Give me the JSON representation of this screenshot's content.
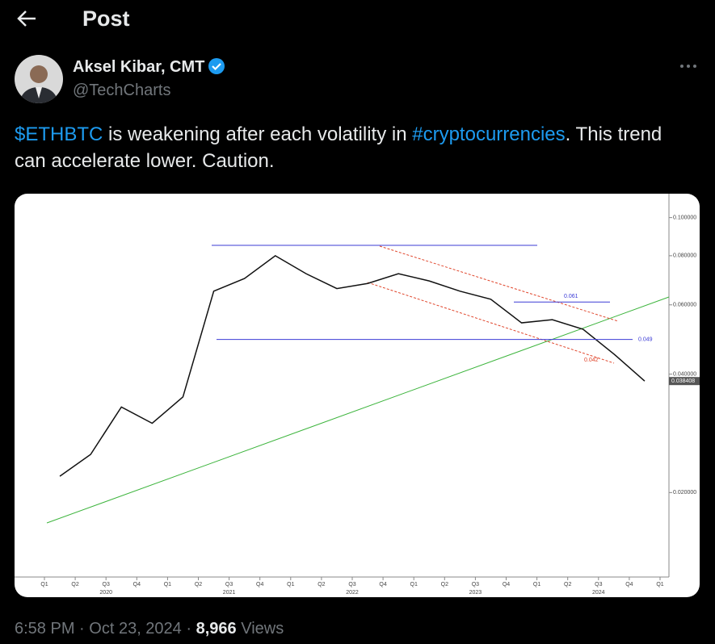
{
  "header": {
    "title": "Post"
  },
  "author": {
    "name": "Aksel Kibar, CMT",
    "handle": "@TechCharts"
  },
  "post": {
    "text": [
      "$ETHBTC",
      " is weakening after each volatility in ",
      "#cryptocurrencies",
      ". This trend can accelerate lower. Caution."
    ]
  },
  "chart_data": {
    "type": "line",
    "log_scale": true,
    "color": "#111111",
    "categories": [
      "Q1",
      "Q2",
      "Q3",
      "Q4",
      "Q1",
      "Q2",
      "Q3",
      "Q4",
      "Q1",
      "Q2",
      "Q3",
      "Q4",
      "Q1",
      "Q2",
      "Q3",
      "Q4",
      "Q1",
      "Q2",
      "Q3",
      "Q4",
      "Q1"
    ],
    "years": [
      "2020",
      "2021",
      "2022",
      "2023",
      "2024"
    ],
    "series": [
      {
        "values": [
          0.022,
          0.025,
          0.033,
          0.03,
          0.035,
          0.065,
          0.07,
          0.08,
          0.072,
          0.066,
          0.068,
          0.072,
          0.069,
          0.065,
          0.062,
          0.054,
          0.055,
          0.052,
          0.045,
          0.0384,
          null
        ]
      }
    ],
    "ylim": [
      0.0122,
      0.115
    ],
    "yticks": [
      {
        "value": 0.02,
        "label": "0.020000"
      },
      {
        "value": 0.04,
        "label": "0.040000"
      },
      {
        "value": 0.06,
        "label": "0.060000"
      },
      {
        "value": 0.08,
        "label": "0.080000"
      },
      {
        "value": 0.1,
        "label": "0.100000"
      }
    ],
    "annotations": [
      {
        "value": 0.061,
        "label": "0.061",
        "color": "#3b3bd6"
      },
      {
        "value": 0.049,
        "label": "0.049",
        "color": "#3b3bd6"
      },
      {
        "value": 0.042,
        "label": "0.042",
        "color": "#e0452b"
      }
    ],
    "last_price": {
      "value": 0.038408,
      "label": "0.038408"
    }
  },
  "footer": {
    "time": "6:58 PM",
    "sep": "·",
    "date": "Oct 23, 2024",
    "views": "8,966",
    "views_label": "Views"
  }
}
